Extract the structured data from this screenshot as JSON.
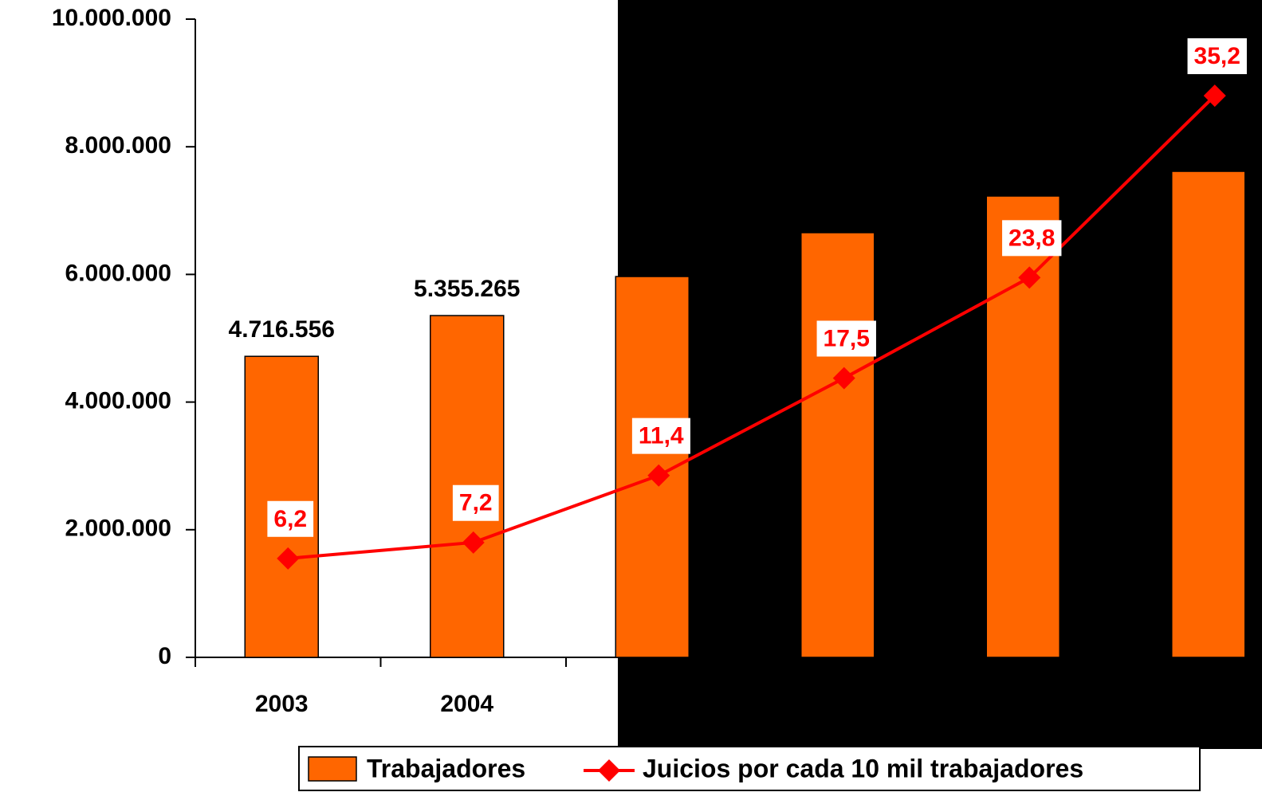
{
  "chart_data": {
    "type": "bar",
    "categories": [
      "2003",
      "2004",
      null,
      null,
      null,
      null
    ],
    "series": [
      {
        "name": "Trabajadores",
        "type": "bar",
        "color": "#ff6600",
        "values": [
          4716556,
          5355265,
          5967000,
          6654000,
          7228000,
          7615000
        ],
        "value_labels": [
          "4.716.556",
          "5.355.265",
          null,
          null,
          null,
          null
        ]
      },
      {
        "name": "Juicios por cada 10 mil trabajadores",
        "type": "line",
        "color": "#ff0000",
        "axis": "y2",
        "values": [
          6.2,
          7.2,
          11.4,
          17.5,
          23.8,
          35.2
        ],
        "value_labels": [
          "6,2",
          "7,2",
          "11,4",
          "17,5",
          "23,8",
          "35,2"
        ]
      }
    ],
    "ylim": [
      0,
      10000000
    ],
    "yticks": [
      0,
      {
        "value": 2000000,
        "label": "2.000.000"
      },
      {
        "value": 4000000,
        "label": "4.000.000"
      },
      {
        "value": 6000000,
        "label": "6.000.000"
      },
      {
        "value": 8000000,
        "label": "8.000.000"
      },
      {
        "value": 10000000,
        "label": "10.000.000"
      }
    ],
    "y2lim": [
      0,
      40
    ],
    "legend": "bottom"
  }
}
